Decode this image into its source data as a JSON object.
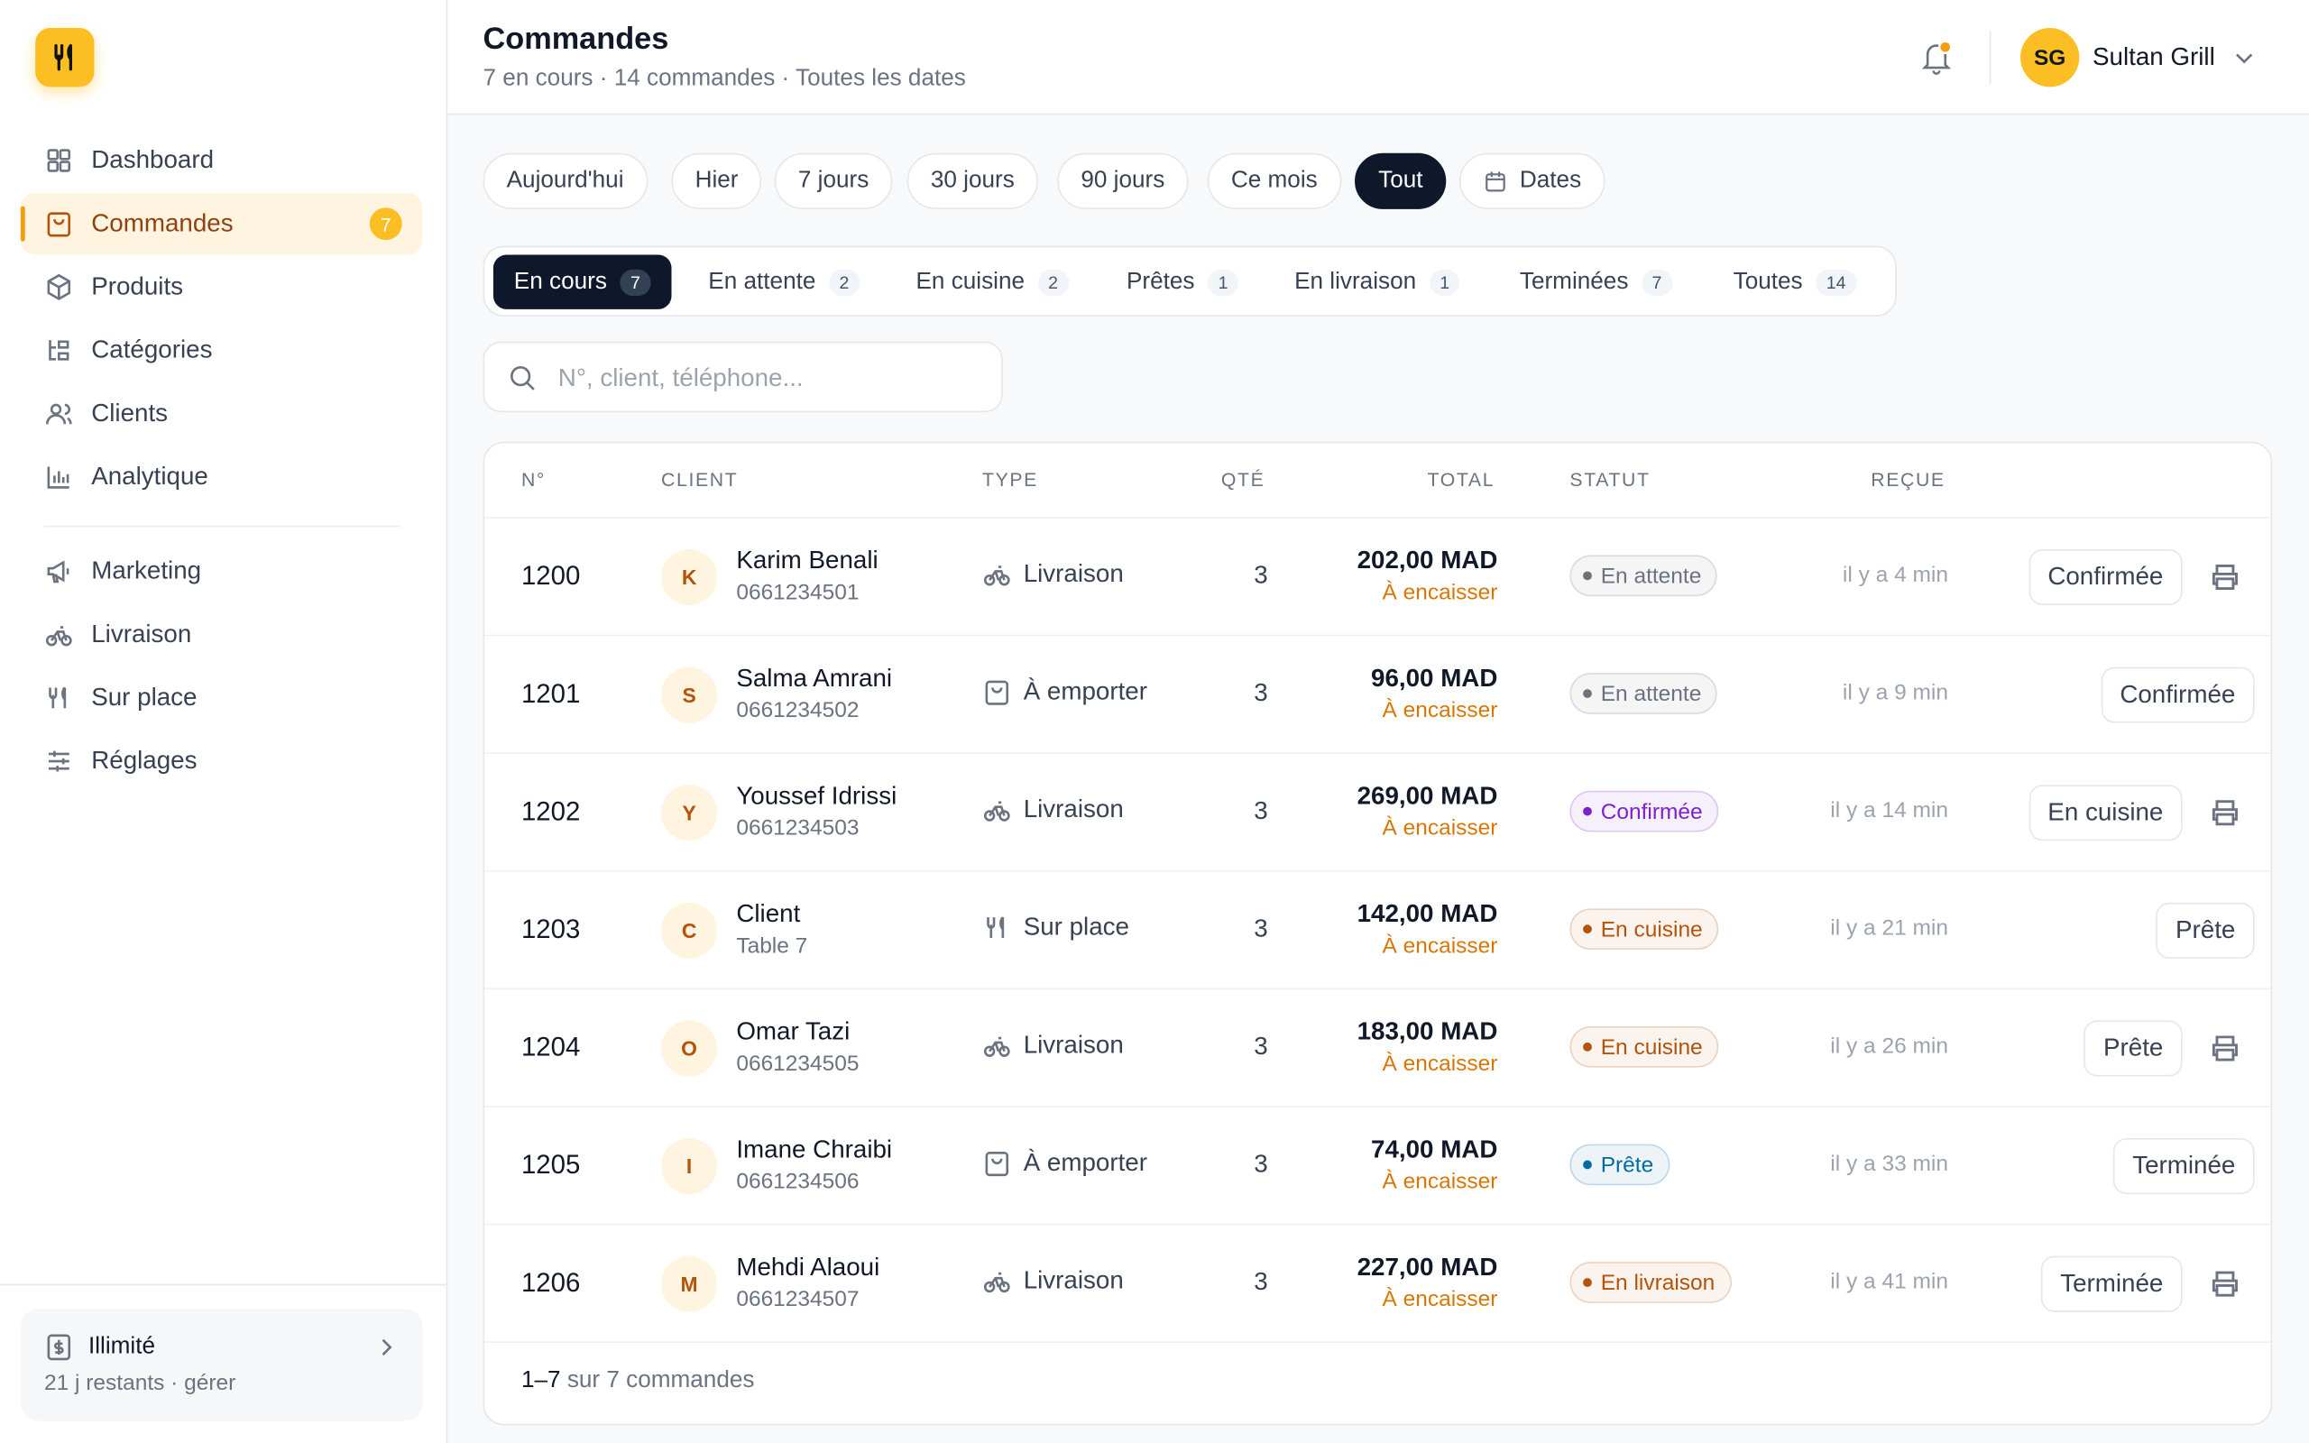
{
  "sidebar": {
    "nav": [
      "Dashboard",
      "Commandes",
      "Produits",
      "Catégories",
      "Clients",
      "Analytique",
      "Marketing",
      "Livraison",
      "Sur place",
      "Réglages"
    ],
    "active_badge": "7",
    "plan": {
      "title": "Illimité",
      "subtitle": "21 j restants · gérer"
    }
  },
  "header": {
    "title": "Commandes",
    "subtitle": "7 en cours · 14 commandes · Toutes les dates",
    "user_initials": "SG",
    "user_name": "Sultan Grill"
  },
  "date_filters": [
    "Aujourd'hui",
    "Hier",
    "7 jours",
    "30 jours",
    "90 jours",
    "Ce mois",
    "Tout",
    "Dates"
  ],
  "status_tabs": [
    {
      "label": "En cours",
      "count": "7"
    },
    {
      "label": "En attente",
      "count": "2"
    },
    {
      "label": "En cuisine",
      "count": "2"
    },
    {
      "label": "Prêtes",
      "count": "1"
    },
    {
      "label": "En livraison",
      "count": "1"
    },
    {
      "label": "Terminées",
      "count": "7"
    },
    {
      "label": "Toutes",
      "count": "14"
    }
  ],
  "search_placeholder": "N°, client, téléphone...",
  "table": {
    "columns": [
      "N°",
      "CLIENT",
      "TYPE",
      "QTÉ",
      "TOTAL",
      "STATUT",
      "REÇUE"
    ],
    "rows": [
      {
        "id": "1200",
        "initial": "K",
        "name": "Karim Benali",
        "sub": "0661234501",
        "type": "Livraison",
        "icon": "bike",
        "qty": "3",
        "total": "202,00 MAD",
        "payment": "À encaisser",
        "status": "En attente",
        "status_color": "#6b7280",
        "time": "il y a 4 min",
        "action": "Confirmée",
        "print": true
      },
      {
        "id": "1201",
        "initial": "S",
        "name": "Salma Amrani",
        "sub": "0661234502",
        "type": "À emporter",
        "icon": "bag",
        "qty": "3",
        "total": "96,00 MAD",
        "payment": "À encaisser",
        "status": "En attente",
        "status_color": "#6b7280",
        "time": "il y a 9 min",
        "action": "Confirmée",
        "print": false
      },
      {
        "id": "1202",
        "initial": "Y",
        "name": "Youssef Idrissi",
        "sub": "0661234503",
        "type": "Livraison",
        "icon": "bike",
        "qty": "3",
        "total": "269,00 MAD",
        "payment": "À encaisser",
        "status": "Confirmée",
        "status_color": "#7e22ce",
        "time": "il y a 14 min",
        "action": "En cuisine",
        "print": true
      },
      {
        "id": "1203",
        "initial": "C",
        "name": "Client",
        "sub": "Table 7",
        "type": "Sur place",
        "icon": "fork",
        "qty": "3",
        "total": "142,00 MAD",
        "payment": "À encaisser",
        "status": "En cuisine",
        "status_color": "#b45309",
        "time": "il y a 21 min",
        "action": "Prête",
        "print": false
      },
      {
        "id": "1204",
        "initial": "O",
        "name": "Omar Tazi",
        "sub": "0661234505",
        "type": "Livraison",
        "icon": "bike",
        "qty": "3",
        "total": "183,00 MAD",
        "payment": "À encaisser",
        "status": "En cuisine",
        "status_color": "#b45309",
        "time": "il y a 26 min",
        "action": "Prête",
        "print": true
      },
      {
        "id": "1205",
        "initial": "I",
        "name": "Imane Chraibi",
        "sub": "0661234506",
        "type": "À emporter",
        "icon": "bag",
        "qty": "3",
        "total": "74,00 MAD",
        "payment": "À encaisser",
        "status": "Prête",
        "status_color": "#0369a1",
        "time": "il y a 33 min",
        "action": "Terminée",
        "print": false
      },
      {
        "id": "1206",
        "initial": "M",
        "name": "Mehdi Alaoui",
        "sub": "0661234507",
        "type": "Livraison",
        "icon": "bike",
        "qty": "3",
        "total": "227,00 MAD",
        "payment": "À encaisser",
        "status": "En livraison",
        "status_color": "#b45309",
        "time": "il y a 41 min",
        "action": "Terminée",
        "print": true
      }
    ],
    "footer": {
      "range": "1–7",
      "text": "sur 7 commandes"
    }
  }
}
